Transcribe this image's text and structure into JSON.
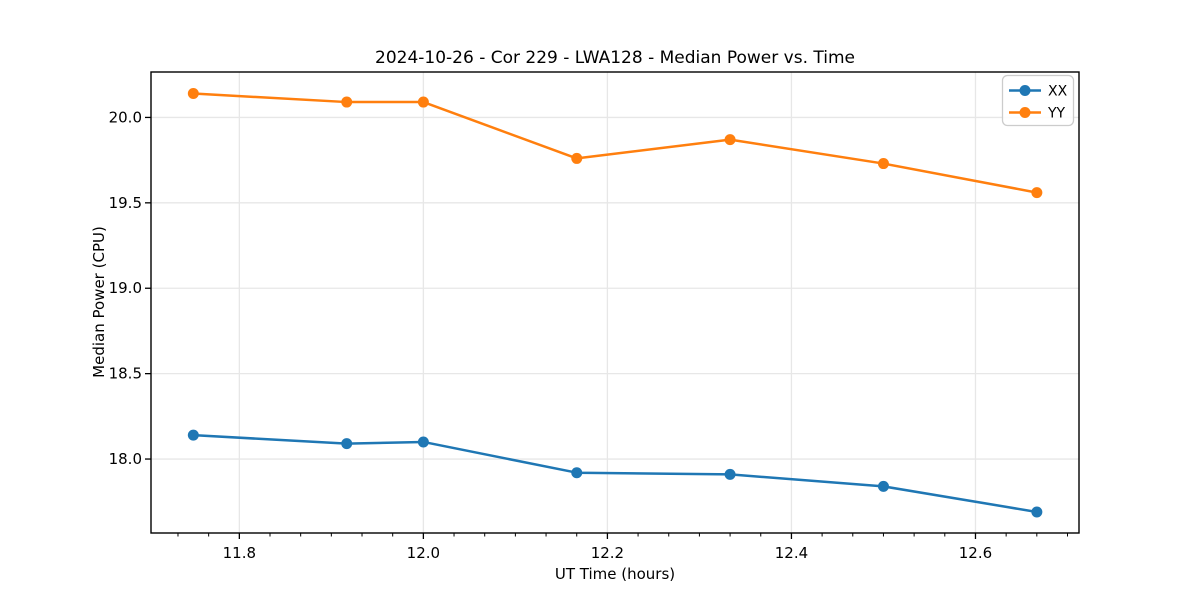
{
  "figure": {
    "background_color": "#ffffff",
    "plot_background_color": "#ffffff",
    "grid_color": "#e7e7e7",
    "spine_color": "#000000",
    "legend_border_color": "#cccccc"
  },
  "chart_data": {
    "type": "line",
    "title": "2024-10-26 - Cor 229 - LWA128 - Median Power vs. Time",
    "xlabel": "UT Time (hours)",
    "ylabel": "Median Power (CPU)",
    "x": [
      11.75,
      11.9167,
      12.0,
      12.1667,
      12.3333,
      12.5,
      12.6667
    ],
    "series": [
      {
        "name": "XX",
        "color": "#1f77b4",
        "values": [
          18.14,
          18.09,
          18.1,
          17.92,
          17.91,
          17.84,
          17.69
        ]
      },
      {
        "name": "YY",
        "color": "#ff7f0e",
        "values": [
          20.14,
          20.09,
          20.09,
          19.76,
          19.87,
          19.73,
          19.56
        ]
      }
    ],
    "xlim": [
      11.704,
      12.7125
    ],
    "ylim": [
      17.567,
      20.266
    ],
    "xticks": [
      11.8,
      12.0,
      12.2,
      12.4,
      12.6
    ],
    "yticks": [
      18.0,
      18.5,
      19.0,
      19.5,
      20.0
    ],
    "x_minor_tick_step": 0.0333333,
    "tick_decimals": 1,
    "grid": true,
    "marker": "circle",
    "legend_position": "upper right"
  }
}
